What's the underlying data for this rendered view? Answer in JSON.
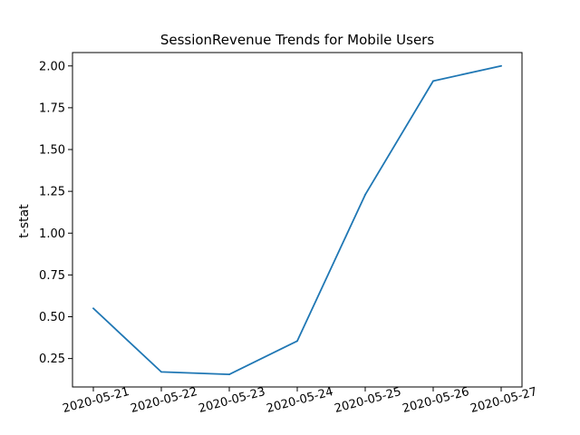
{
  "chart_data": {
    "type": "line",
    "title": "SessionRevenue Trends for Mobile Users",
    "xlabel": "",
    "ylabel": "t-stat",
    "x": [
      "2020-05-21",
      "2020-05-22",
      "2020-05-23",
      "2020-05-24",
      "2020-05-25",
      "2020-05-26",
      "2020-05-27"
    ],
    "series": [
      {
        "values": [
          0.55,
          0.17,
          0.155,
          0.355,
          1.23,
          1.91,
          2.0
        ],
        "color": "#1f77b4"
      }
    ],
    "yticks": [
      "0.25",
      "0.50",
      "0.75",
      "1.00",
      "1.25",
      "1.50",
      "1.75",
      "2.00"
    ],
    "ylim": [
      0.08,
      2.08
    ],
    "x_tick_rotation_deg": 15,
    "grid": false,
    "legend": "none"
  }
}
